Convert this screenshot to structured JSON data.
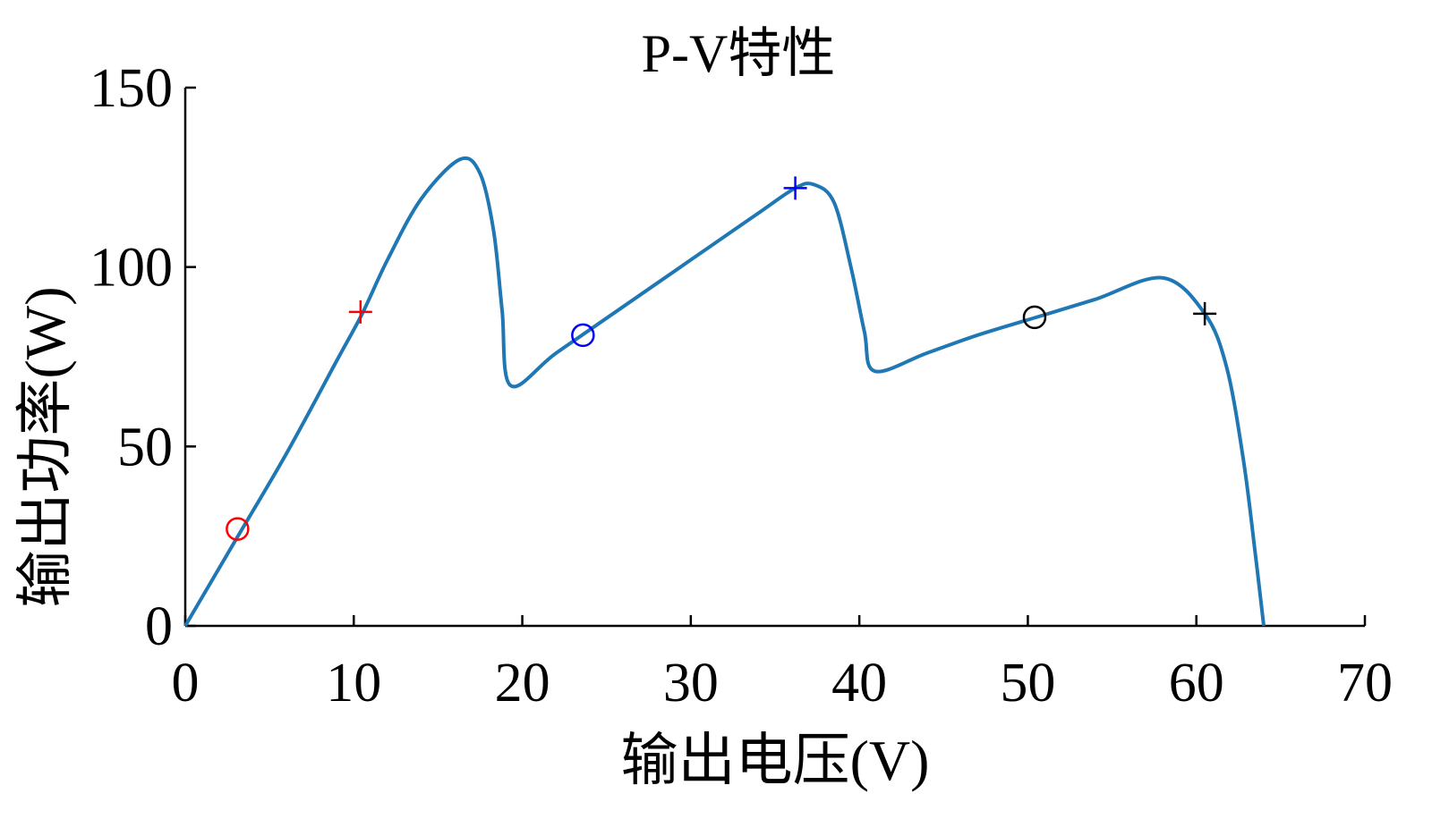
{
  "chart_data": {
    "type": "line",
    "title": "P-V特性",
    "xlabel": "输出电压(V)",
    "ylabel": "输出功率(W)",
    "xlim": [
      0,
      70
    ],
    "ylim": [
      0,
      150
    ],
    "xticks": [
      0,
      10,
      20,
      30,
      40,
      50,
      60,
      70
    ],
    "yticks": [
      0,
      50,
      100,
      150
    ],
    "grid": false,
    "series": [
      {
        "color": "#1f77b4",
        "x": [
          0,
          3,
          6,
          9,
          10.5,
          12,
          14,
          16.3,
          17.5,
          18.3,
          18.8,
          19.3,
          22,
          26,
          30,
          34,
          36.2,
          37.3,
          38.5,
          39.5,
          40.3,
          40.9,
          44,
          47,
          50.5,
          54,
          58,
          60.5,
          61.8,
          62.8,
          63.5,
          64
        ],
        "y": [
          0,
          24,
          48,
          74,
          87,
          102,
          119,
          130,
          126,
          110,
          88,
          67,
          76,
          89,
          102,
          115,
          122,
          123,
          118,
          100,
          82,
          71,
          76,
          81,
          86,
          91,
          97,
          87,
          72,
          46,
          20,
          0
        ]
      }
    ],
    "markers": [
      {
        "symbol": "circle",
        "color": "#ff0000",
        "x": 3.1,
        "y": 27
      },
      {
        "symbol": "plus",
        "color": "#ff0000",
        "x": 10.4,
        "y": 87.5
      },
      {
        "symbol": "circle",
        "color": "#0000ff",
        "x": 23.6,
        "y": 81
      },
      {
        "symbol": "plus",
        "color": "#0000ff",
        "x": 36.2,
        "y": 122
      },
      {
        "symbol": "circle",
        "color": "#000000",
        "x": 50.4,
        "y": 86
      },
      {
        "symbol": "plus",
        "color": "#000000",
        "x": 60.5,
        "y": 87
      }
    ]
  }
}
